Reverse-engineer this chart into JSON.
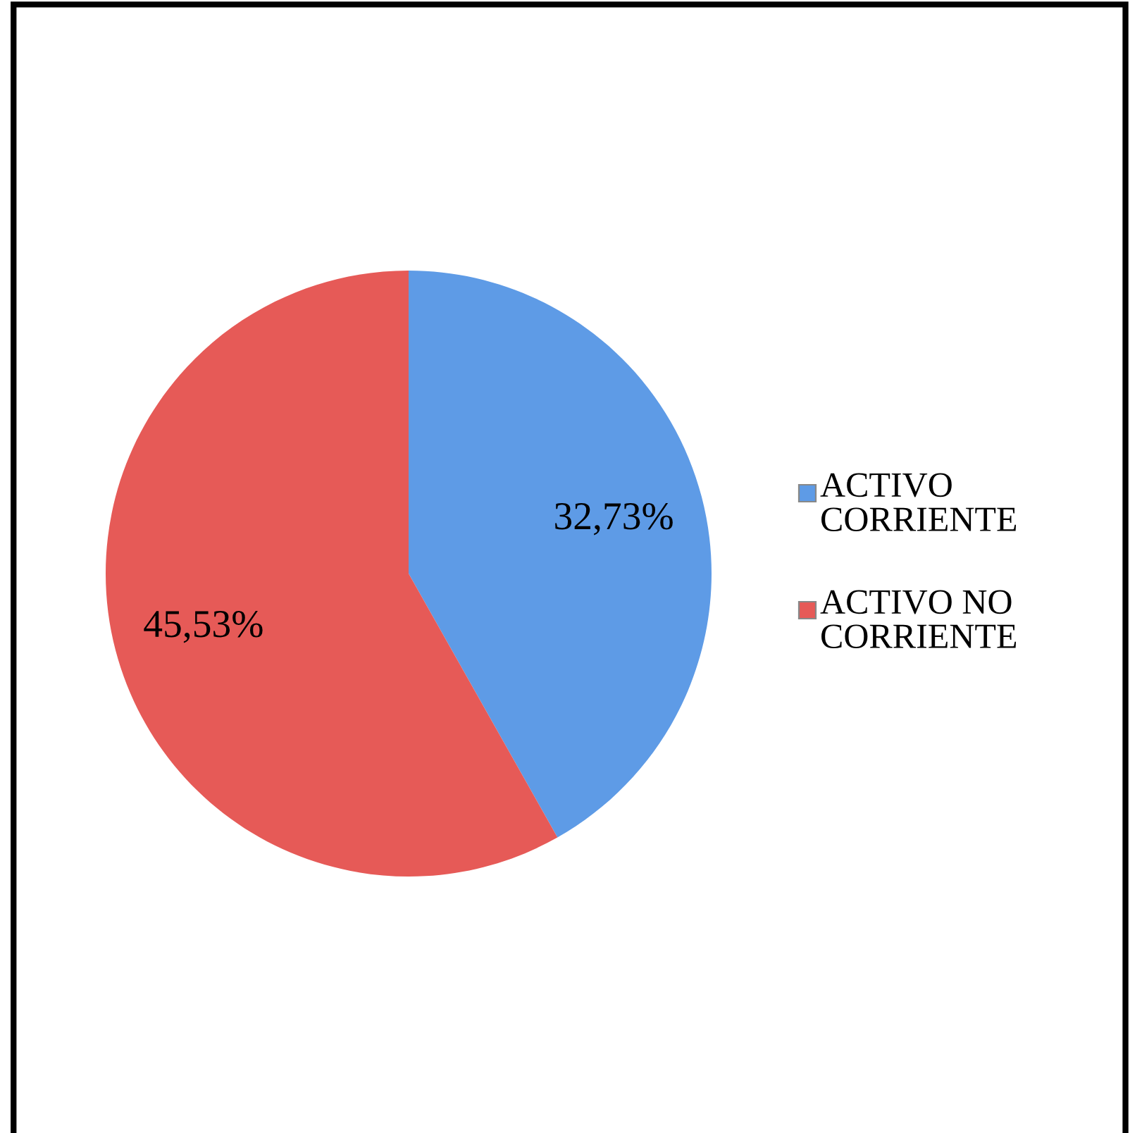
{
  "chart_data": {
    "type": "pie",
    "categories": [
      "ACTIVO CORRIENTE",
      "ACTIVO NO CORRIENTE"
    ],
    "values": [
      32.73,
      45.53
    ],
    "colors": [
      "#5e9be6",
      "#e65a57"
    ],
    "value_labels": [
      "32,73%",
      "45,53%"
    ],
    "legend": "right"
  }
}
